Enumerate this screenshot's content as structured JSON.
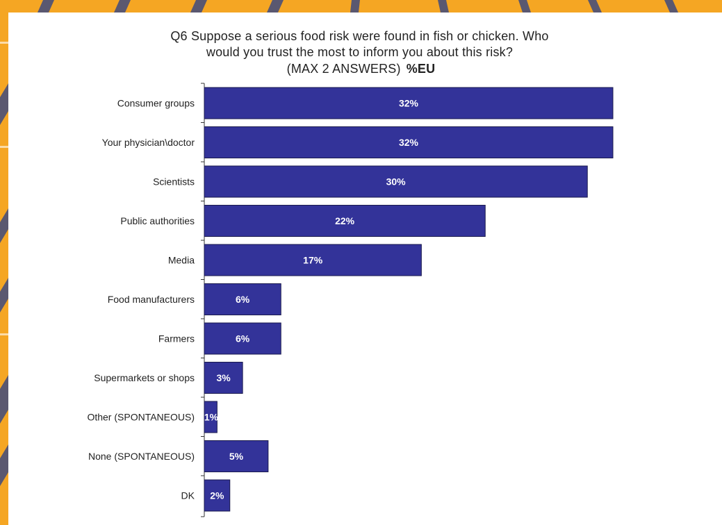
{
  "chart_data": {
    "type": "bar",
    "orientation": "horizontal",
    "title_lines": [
      "Q6 Suppose a serious food risk were found in fish or chicken. Who",
      "would you trust the most to inform you about this risk?",
      "(MAX 2 ANSWERS)"
    ],
    "title_bold": "%EU",
    "categories": [
      "Consumer groups",
      "Your physician\\doctor",
      "Scientists",
      "Public authorities",
      "Media",
      "Food manufacturers",
      "Farmers",
      "Supermarkets or shops",
      "Other (SPONTANEOUS)",
      "None (SPONTANEOUS)",
      "DK"
    ],
    "values": [
      32,
      32,
      30,
      22,
      17,
      6,
      6,
      3,
      1,
      5,
      2
    ],
    "value_labels": [
      "32%",
      "32%",
      "30%",
      "22%",
      "17%",
      "6%",
      "6%",
      "3%",
      "1%",
      "5%",
      "2%"
    ],
    "xlim": [
      0,
      32
    ],
    "bar_color": "#333399",
    "grid": false,
    "legend": "none"
  }
}
